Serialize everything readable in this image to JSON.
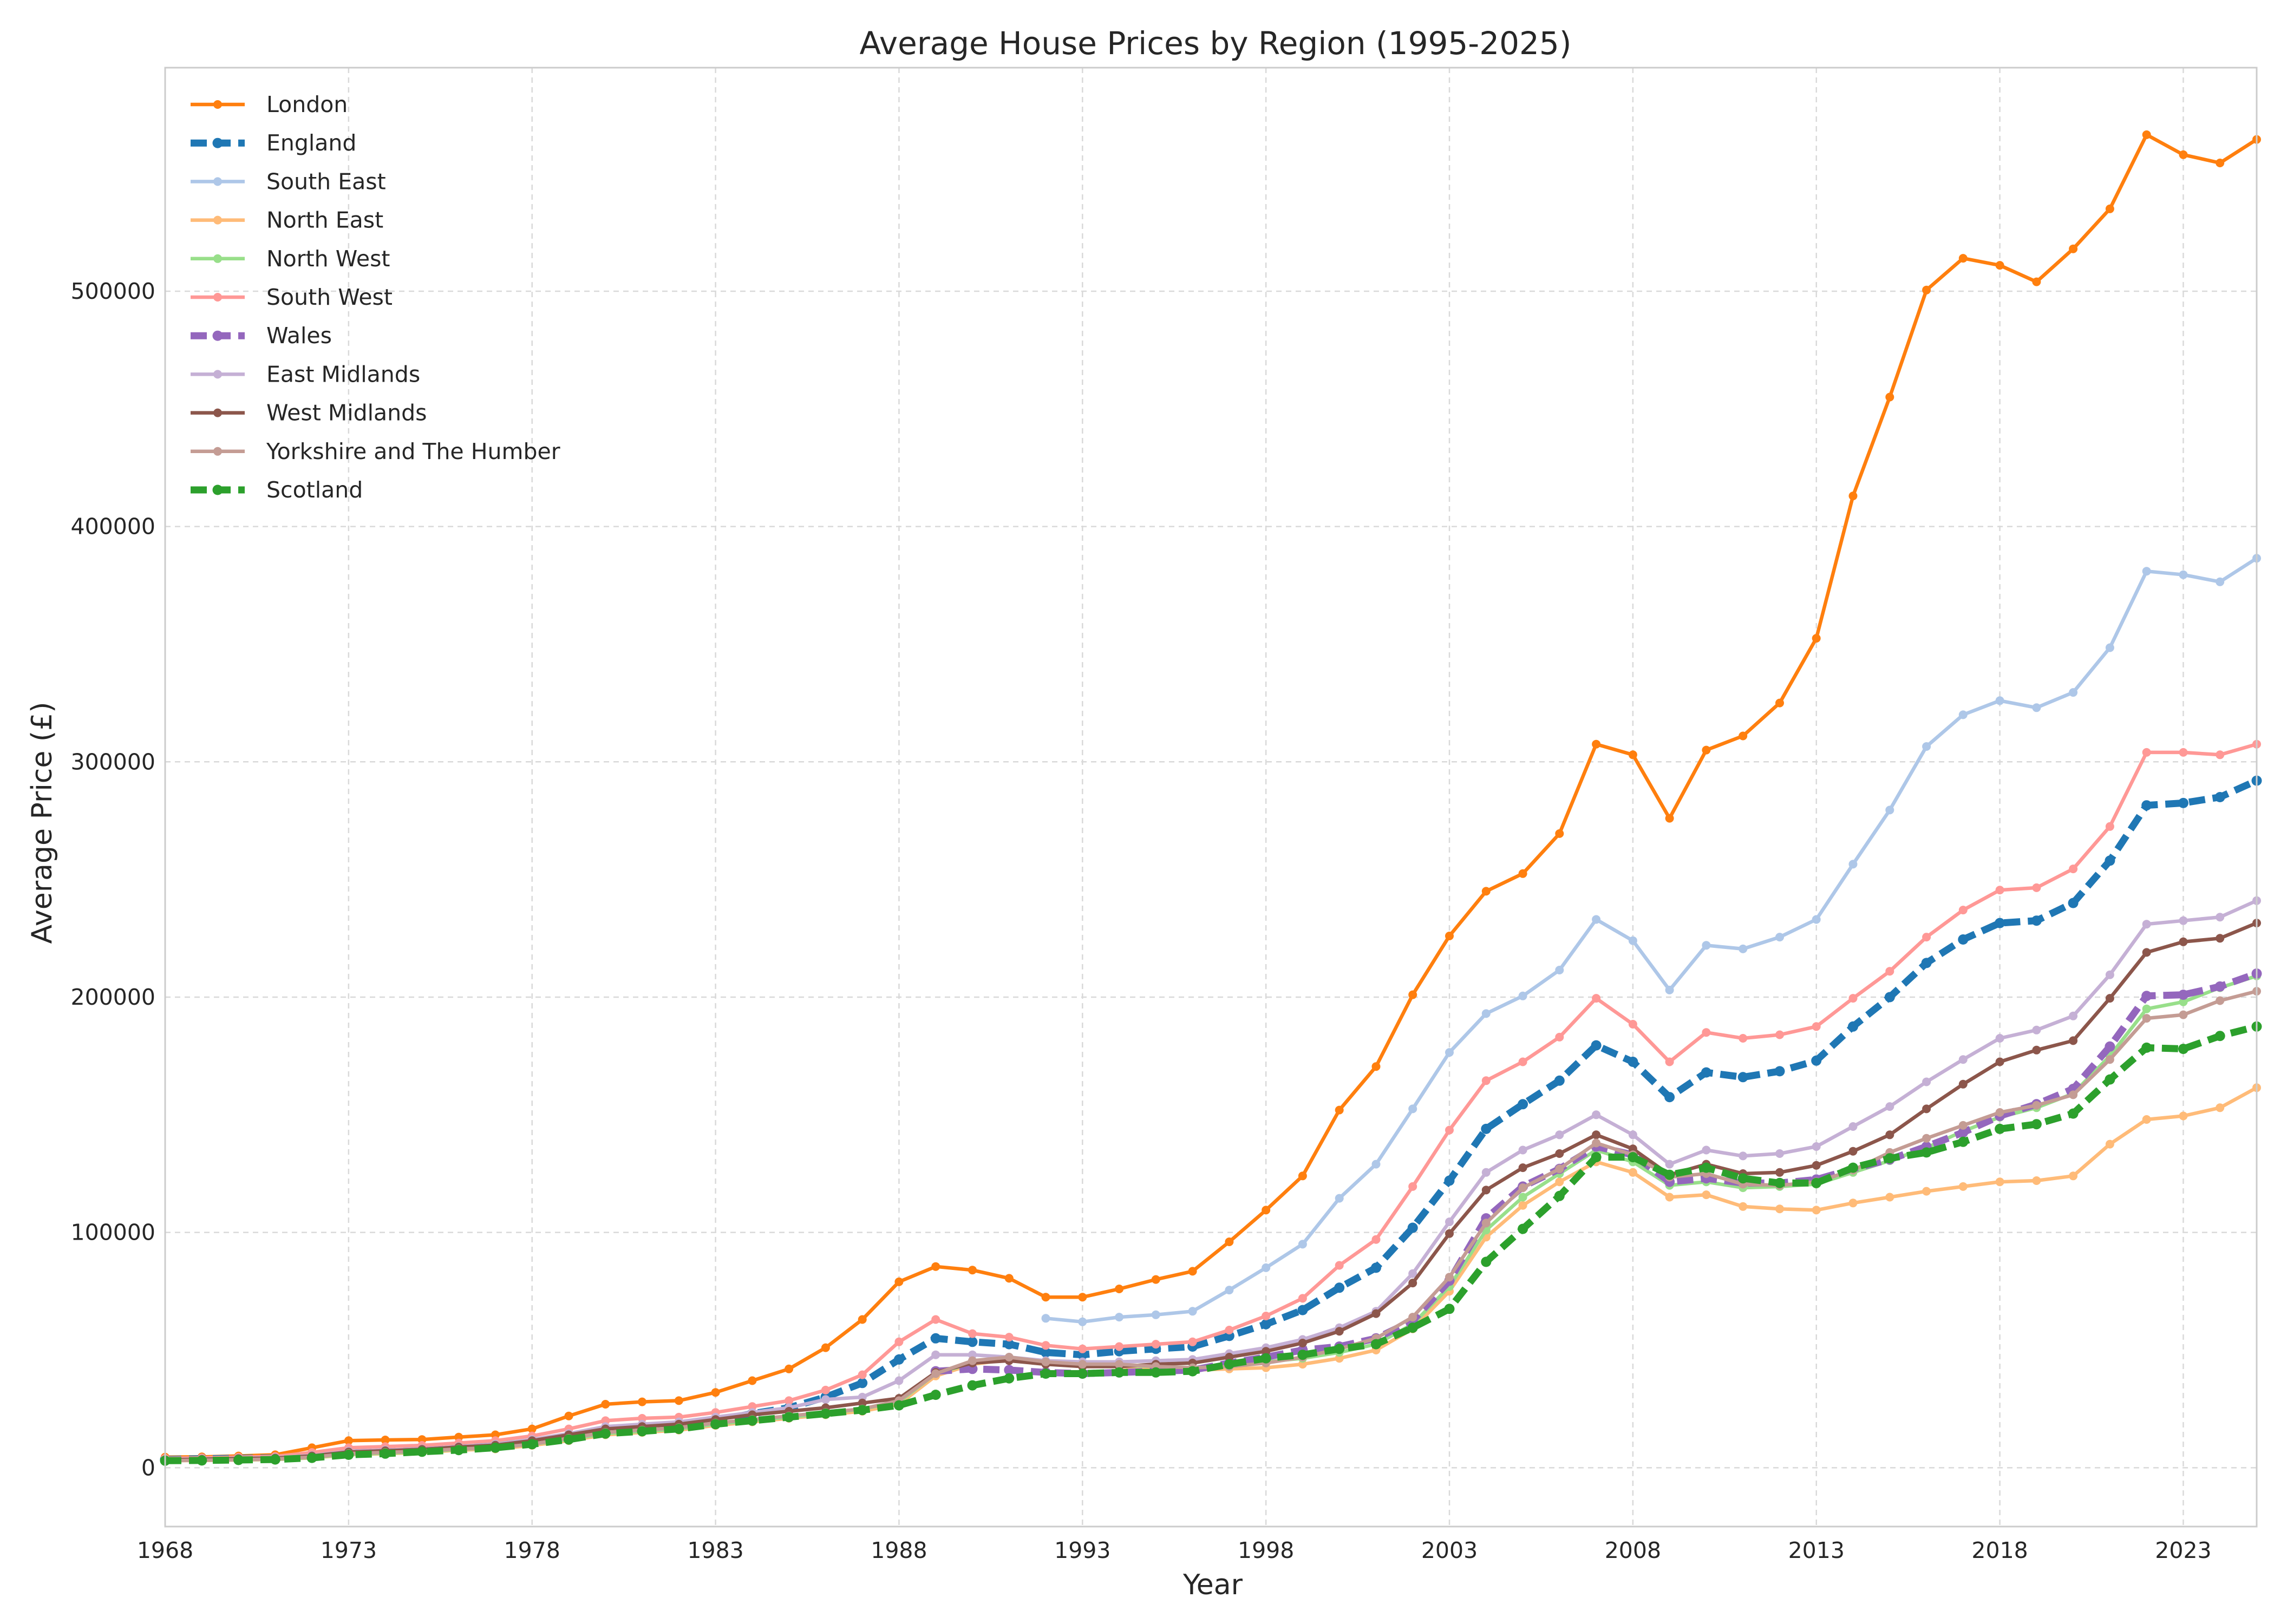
{
  "chart_data": {
    "type": "line",
    "title": "Average House Prices by Region (1995-2025)",
    "xlabel": "Year",
    "ylabel": "Average Price (£)",
    "xlim": [
      1968,
      2025
    ],
    "ylim": [
      -25000,
      595000
    ],
    "x_ticks": [
      1968,
      1973,
      1978,
      1983,
      1988,
      1993,
      1998,
      2003,
      2008,
      2013,
      2018,
      2023
    ],
    "y_ticks": [
      0,
      100000,
      200000,
      300000,
      400000,
      500000
    ],
    "grid": true,
    "legend_position": "top-left",
    "series": [
      {
        "name": "London",
        "color": "#ff7f0e",
        "dashed": false,
        "start": 1968,
        "values": [
          4500,
          4600,
          5000,
          5500,
          8500,
          11500,
          11800,
          12000,
          13000,
          14000,
          16500,
          22000,
          27000,
          28000,
          28500,
          32000,
          37000,
          42000,
          51000,
          63000,
          79000,
          85500,
          84000,
          80500,
          72500,
          72500,
          76000,
          80000,
          83500,
          96000,
          109500,
          124000,
          152000,
          170500,
          201000,
          226000,
          245000,
          252500,
          269500,
          307500,
          303000,
          276000,
          305000,
          311000,
          325000,
          352500,
          413000,
          455000,
          500500,
          514000,
          511000,
          504000,
          518000,
          535000,
          566500,
          558000,
          554500,
          564500
        ]
      },
      {
        "name": "England",
        "color": "#1f77b4",
        "dashed": true,
        "start": 1968,
        "values": [
          3500,
          3800,
          4000,
          4200,
          5000,
          6500,
          7000,
          7500,
          8500,
          9500,
          11000,
          13500,
          16000,
          17000,
          18000,
          20000,
          23000,
          25500,
          30000,
          36000,
          46000,
          55000,
          53500,
          52500,
          49000,
          48000,
          49500,
          50500,
          51500,
          56000,
          61000,
          67000,
          76500,
          85000,
          102000,
          122000,
          144000,
          154500,
          164500,
          179500,
          172500,
          157500,
          168000,
          166000,
          168500,
          173000,
          187500,
          200000,
          214500,
          224500,
          231500,
          232500,
          240000,
          258000,
          281500,
          282500,
          285000,
          292000
        ]
      },
      {
        "name": "South East",
        "color": "#aec7e8",
        "dashed": false,
        "start": 1992,
        "values": [
          63500,
          62000,
          64000,
          65000,
          66500,
          75500,
          85000,
          95000,
          114500,
          129000,
          152500,
          176500,
          193000,
          200500,
          211500,
          233000,
          224000,
          203000,
          222000,
          220500,
          225500,
          233000,
          256500,
          279500,
          306500,
          320000,
          326000,
          323000,
          329500,
          348500,
          381000,
          379500,
          376500,
          386500
        ]
      },
      {
        "name": "North East",
        "color": "#ffbb78",
        "dashed": false,
        "start": 1968,
        "values": [
          3000,
          3100,
          3300,
          3500,
          4200,
          5500,
          6000,
          6500,
          7500,
          8000,
          9500,
          11500,
          14000,
          15000,
          16000,
          18000,
          19500,
          21000,
          22500,
          24000,
          27000,
          39000,
          44000,
          46000,
          44500,
          43000,
          43000,
          42000,
          41500,
          42000,
          42500,
          44000,
          46500,
          50000,
          59000,
          75000,
          98000,
          111500,
          121500,
          130000,
          125500,
          115000,
          116000,
          111000,
          110000,
          109500,
          112500,
          115000,
          117500,
          119500,
          121500,
          122000,
          124000,
          137500,
          148000,
          149500,
          153000,
          161500
        ]
      },
      {
        "name": "North West",
        "color": "#98df8a",
        "dashed": false,
        "start": 1968,
        "values": [
          3000,
          3200,
          3400,
          3600,
          4300,
          5700,
          6200,
          6800,
          7800,
          8500,
          10000,
          12000,
          14500,
          15500,
          16500,
          18500,
          20000,
          21500,
          23000,
          25000,
          28000,
          40000,
          44500,
          46500,
          45000,
          43500,
          43500,
          43000,
          42500,
          43500,
          45000,
          46500,
          49000,
          52500,
          61000,
          77000,
          101000,
          115000,
          125000,
          135000,
          130000,
          120000,
          121500,
          119000,
          119500,
          120500,
          125500,
          130500,
          136000,
          143000,
          149000,
          153000,
          159000,
          175000,
          195000,
          198000,
          204000,
          209000
        ]
      },
      {
        "name": "South West",
        "color": "#ff9896",
        "dashed": false,
        "start": 1968,
        "values": [
          4000,
          4200,
          4500,
          4800,
          6500,
          8500,
          9000,
          9500,
          10500,
          11500,
          13500,
          16500,
          20000,
          21000,
          21500,
          23500,
          26000,
          28500,
          33000,
          39500,
          53500,
          63000,
          57000,
          55500,
          52000,
          50500,
          51500,
          52500,
          53500,
          58500,
          64500,
          72000,
          86000,
          97000,
          119500,
          143500,
          164500,
          172500,
          183000,
          199500,
          188500,
          172500,
          185000,
          182500,
          184000,
          187500,
          199500,
          211000,
          225500,
          237000,
          245500,
          246500,
          254500,
          272500,
          304000,
          304000,
          303000,
          307500
        ]
      },
      {
        "name": "Wales",
        "color": "#9467bd",
        "dashed": true,
        "start": 1989,
        "values": [
          41000,
          42000,
          41500,
          40500,
          40000,
          40500,
          41000,
          41500,
          44500,
          47000,
          50000,
          51500,
          55000,
          62500,
          79500,
          106000,
          119500,
          127000,
          136500,
          133000,
          121500,
          123000,
          121000,
          121000,
          122500,
          127000,
          131000,
          136500,
          142500,
          149500,
          154500,
          161000,
          179000,
          200500,
          201000,
          204500,
          210000
        ]
      },
      {
        "name": "East Midlands",
        "color": "#c5b0d5",
        "dashed": false,
        "start": 1968,
        "values": [
          3500,
          3700,
          4000,
          4300,
          5200,
          7000,
          7500,
          8000,
          9000,
          10000,
          12000,
          14500,
          17500,
          18500,
          19500,
          21500,
          23500,
          25500,
          29000,
          30000,
          37000,
          48000,
          48000,
          47000,
          45500,
          45000,
          45000,
          45500,
          46000,
          48500,
          51000,
          54500,
          59500,
          66500,
          82500,
          104500,
          125500,
          135000,
          141500,
          150000,
          141500,
          129000,
          135000,
          132500,
          133500,
          136500,
          145000,
          153500,
          164000,
          173500,
          182500,
          186000,
          192000,
          209500,
          231000,
          232500,
          234000,
          241000
        ]
      },
      {
        "name": "West Midlands",
        "color": "#8c564b",
        "dashed": false,
        "start": 1968,
        "values": [
          3400,
          3600,
          3900,
          4100,
          5000,
          6700,
          7200,
          7800,
          8800,
          9600,
          11500,
          14000,
          16500,
          17500,
          18500,
          20500,
          22500,
          24000,
          25500,
          27500,
          29500,
          40500,
          44500,
          45500,
          44000,
          43000,
          43000,
          44000,
          44500,
          47000,
          49500,
          53000,
          58000,
          65500,
          78500,
          99500,
          118000,
          127500,
          133500,
          141500,
          135500,
          124500,
          129000,
          125000,
          125500,
          128500,
          134500,
          141500,
          152500,
          163000,
          172500,
          177500,
          181500,
          199500,
          219000,
          223500,
          225000,
          231500
        ]
      },
      {
        "name": "Yorkshire and The Humber",
        "color": "#c49c94",
        "dashed": false,
        "start": 1968,
        "values": [
          3000,
          3200,
          3400,
          3700,
          4500,
          6000,
          6500,
          7000,
          8000,
          8500,
          10000,
          12500,
          15000,
          16000,
          17000,
          19000,
          20500,
          22000,
          23500,
          25000,
          28500,
          40000,
          45500,
          47000,
          45000,
          44000,
          44000,
          43000,
          42500,
          43000,
          44500,
          47000,
          50500,
          55000,
          64000,
          81000,
          104000,
          119000,
          127000,
          138000,
          133000,
          123500,
          125000,
          120500,
          120000,
          121500,
          126500,
          134000,
          140000,
          145500,
          151000,
          154000,
          158500,
          173500,
          191000,
          192500,
          198500,
          202500
        ]
      },
      {
        "name": "Scotland",
        "color": "#2ca02c",
        "dashed": true,
        "start": 1968,
        "values": [
          3000,
          3100,
          3300,
          3500,
          4200,
          5500,
          6000,
          6800,
          7500,
          8500,
          10000,
          12000,
          14500,
          15500,
          16500,
          18500,
          20000,
          21500,
          23000,
          24500,
          26500,
          31000,
          35000,
          38000,
          40000,
          40000,
          40500,
          40500,
          41000,
          44000,
          46500,
          48000,
          50500,
          52500,
          59500,
          67500,
          87500,
          101500,
          115500,
          132000,
          132000,
          124500,
          127500,
          123000,
          121000,
          121000,
          127500,
          131500,
          134000,
          138500,
          144000,
          146000,
          150500,
          165000,
          178500,
          178000,
          183500,
          187500
        ]
      }
    ]
  }
}
